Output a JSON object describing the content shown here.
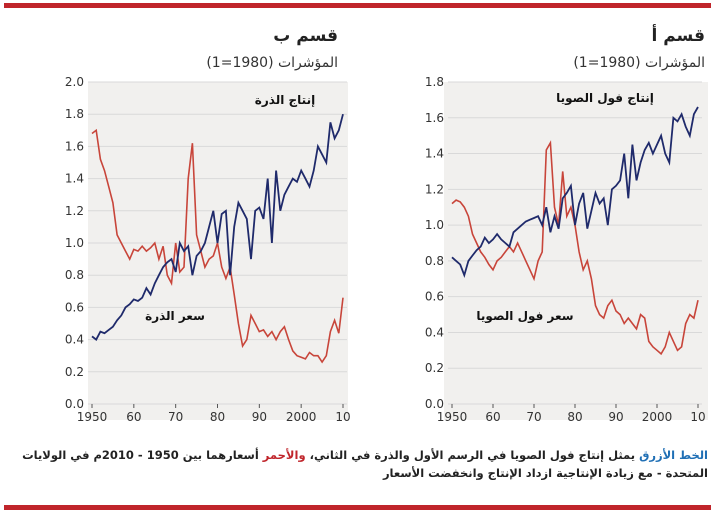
{
  "caption": {
    "blue_part": "الخط الأزرق",
    "text1": " يمثل إنتاج فول الصويا في الرسم الأول والذرة في الثاني، ",
    "red_part": "والأحمر",
    "text2": " أسعارهما بين 1950 - 2010م في الولايات المتحدة - مع زيادة الإنتاجية ازداد الإنتاج وانخفضت الأسعار"
  },
  "colors": {
    "production": "#1f2a6b",
    "price": "#c8453a",
    "grid": "#d9d9d9",
    "panel": "#f1f0ee",
    "accent": "#c0252b"
  },
  "chart_data": [
    {
      "type": "line",
      "title": "قسم أ",
      "subtitle": "المؤشرات (1980=1)",
      "ylim": [
        0,
        1.8
      ],
      "yticks": [
        "0.0",
        "0.2",
        "0.4",
        "0.6",
        "0.8",
        "1.0",
        "1.2",
        "1.4",
        "1.6",
        "1.8"
      ],
      "xlim": [
        1950,
        2010
      ],
      "xticks": [
        "1950",
        "60",
        "70",
        "80",
        "90",
        "2000",
        "10"
      ],
      "grid": true,
      "series": [
        {
          "name": "إنتاج فول الصويا",
          "role": "production",
          "x": [
            1950,
            1951,
            1952,
            1953,
            1954,
            1955,
            1956,
            1957,
            1958,
            1959,
            1960,
            1961,
            1962,
            1963,
            1964,
            1965,
            1966,
            1967,
            1968,
            1969,
            1970,
            1971,
            1972,
            1973,
            1974,
            1975,
            1976,
            1977,
            1978,
            1979,
            1980,
            1981,
            1982,
            1983,
            1984,
            1985,
            1986,
            1987,
            1988,
            1989,
            1990,
            1991,
            1992,
            1993,
            1994,
            1995,
            1996,
            1997,
            1998,
            1999,
            2000,
            2001,
            2002,
            2003,
            2004,
            2005,
            2006,
            2007,
            2008,
            2009,
            2010
          ],
          "values": [
            0.82,
            0.8,
            0.78,
            0.72,
            0.8,
            0.83,
            0.86,
            0.88,
            0.93,
            0.9,
            0.92,
            0.95,
            0.92,
            0.9,
            0.88,
            0.96,
            0.98,
            1.0,
            1.02,
            1.03,
            1.04,
            1.05,
            1.0,
            1.1,
            0.96,
            1.05,
            0.98,
            1.15,
            1.18,
            1.22,
            1.0,
            1.12,
            1.18,
            0.98,
            1.08,
            1.18,
            1.12,
            1.15,
            1.0,
            1.2,
            1.22,
            1.25,
            1.4,
            1.15,
            1.45,
            1.25,
            1.35,
            1.42,
            1.46,
            1.4,
            1.45,
            1.5,
            1.4,
            1.35,
            1.6,
            1.58,
            1.62,
            1.55,
            1.5,
            1.62,
            1.66
          ]
        },
        {
          "name": "سعر فول الصويا",
          "role": "price",
          "x": [
            1950,
            1951,
            1952,
            1953,
            1954,
            1955,
            1956,
            1957,
            1958,
            1959,
            1960,
            1961,
            1962,
            1963,
            1964,
            1965,
            1966,
            1967,
            1968,
            1969,
            1970,
            1971,
            1972,
            1973,
            1974,
            1975,
            1976,
            1977,
            1978,
            1979,
            1980,
            1981,
            1982,
            1983,
            1984,
            1985,
            1986,
            1987,
            1988,
            1989,
            1990,
            1991,
            1992,
            1993,
            1994,
            1995,
            1996,
            1997,
            1998,
            1999,
            2000,
            2001,
            2002,
            2003,
            2004,
            2005,
            2006,
            2007,
            2008,
            2009,
            2010
          ],
          "values": [
            1.12,
            1.14,
            1.13,
            1.1,
            1.05,
            0.95,
            0.9,
            0.85,
            0.82,
            0.78,
            0.75,
            0.8,
            0.82,
            0.85,
            0.88,
            0.85,
            0.9,
            0.85,
            0.8,
            0.75,
            0.7,
            0.8,
            0.85,
            1.42,
            1.46,
            1.1,
            1.0,
            1.3,
            1.05,
            1.1,
            1.0,
            0.85,
            0.75,
            0.8,
            0.7,
            0.55,
            0.5,
            0.48,
            0.55,
            0.58,
            0.52,
            0.5,
            0.45,
            0.48,
            0.45,
            0.42,
            0.5,
            0.48,
            0.35,
            0.32,
            0.3,
            0.28,
            0.32,
            0.4,
            0.35,
            0.3,
            0.32,
            0.45,
            0.5,
            0.48,
            0.58
          ]
        }
      ]
    },
    {
      "type": "line",
      "title": "قسم ب",
      "subtitle": "المؤشرات (1980=1)",
      "ylim": [
        0,
        2.0
      ],
      "yticks": [
        "0.0",
        "0.2",
        "0.4",
        "0.6",
        "0.8",
        "1.0",
        "1.2",
        "1.4",
        "1.6",
        "1.8",
        "2.0"
      ],
      "xlim": [
        1950,
        2010
      ],
      "xticks": [
        "1950",
        "60",
        "70",
        "80",
        "90",
        "2000",
        "10"
      ],
      "grid": true,
      "series": [
        {
          "name": "إنتاج الذرة",
          "role": "production",
          "x": [
            1950,
            1951,
            1952,
            1953,
            1954,
            1955,
            1956,
            1957,
            1958,
            1959,
            1960,
            1961,
            1962,
            1963,
            1964,
            1965,
            1966,
            1967,
            1968,
            1969,
            1970,
            1971,
            1972,
            1973,
            1974,
            1975,
            1976,
            1977,
            1978,
            1979,
            1980,
            1981,
            1982,
            1983,
            1984,
            1985,
            1986,
            1987,
            1988,
            1989,
            1990,
            1991,
            1992,
            1993,
            1994,
            1995,
            1996,
            1997,
            1998,
            1999,
            2000,
            2001,
            2002,
            2003,
            2004,
            2005,
            2006,
            2007,
            2008,
            2009,
            2010
          ],
          "values": [
            0.42,
            0.4,
            0.45,
            0.44,
            0.46,
            0.48,
            0.52,
            0.55,
            0.6,
            0.62,
            0.65,
            0.64,
            0.66,
            0.72,
            0.68,
            0.75,
            0.8,
            0.85,
            0.88,
            0.9,
            0.82,
            1.0,
            0.95,
            0.98,
            0.8,
            0.92,
            0.95,
            1.0,
            1.1,
            1.2,
            1.0,
            1.18,
            1.2,
            0.8,
            1.1,
            1.25,
            1.2,
            1.15,
            0.9,
            1.2,
            1.22,
            1.15,
            1.4,
            1.0,
            1.45,
            1.2,
            1.3,
            1.35,
            1.4,
            1.38,
            1.45,
            1.4,
            1.35,
            1.45,
            1.6,
            1.55,
            1.5,
            1.75,
            1.65,
            1.7,
            1.8
          ]
        },
        {
          "name": "سعر الذرة",
          "role": "price",
          "x": [
            1950,
            1951,
            1952,
            1953,
            1954,
            1955,
            1956,
            1957,
            1958,
            1959,
            1960,
            1961,
            1962,
            1963,
            1964,
            1965,
            1966,
            1967,
            1968,
            1969,
            1970,
            1971,
            1972,
            1973,
            1974,
            1975,
            1976,
            1977,
            1978,
            1979,
            1980,
            1981,
            1982,
            1983,
            1984,
            1985,
            1986,
            1987,
            1988,
            1989,
            1990,
            1991,
            1992,
            1993,
            1994,
            1995,
            1996,
            1997,
            1998,
            1999,
            2000,
            2001,
            2002,
            2003,
            2004,
            2005,
            2006,
            2007,
            2008,
            2009,
            2010
          ],
          "values": [
            1.68,
            1.7,
            1.52,
            1.45,
            1.35,
            1.25,
            1.05,
            1.0,
            0.95,
            0.9,
            0.96,
            0.95,
            0.98,
            0.95,
            0.97,
            1.0,
            0.9,
            0.98,
            0.8,
            0.75,
            1.0,
            0.82,
            0.85,
            1.4,
            1.62,
            1.05,
            0.95,
            0.85,
            0.9,
            0.92,
            1.0,
            0.85,
            0.78,
            0.85,
            0.68,
            0.5,
            0.36,
            0.4,
            0.55,
            0.5,
            0.45,
            0.46,
            0.42,
            0.45,
            0.4,
            0.45,
            0.48,
            0.4,
            0.33,
            0.3,
            0.29,
            0.28,
            0.32,
            0.3,
            0.3,
            0.26,
            0.3,
            0.45,
            0.52,
            0.44,
            0.66
          ]
        }
      ]
    }
  ]
}
